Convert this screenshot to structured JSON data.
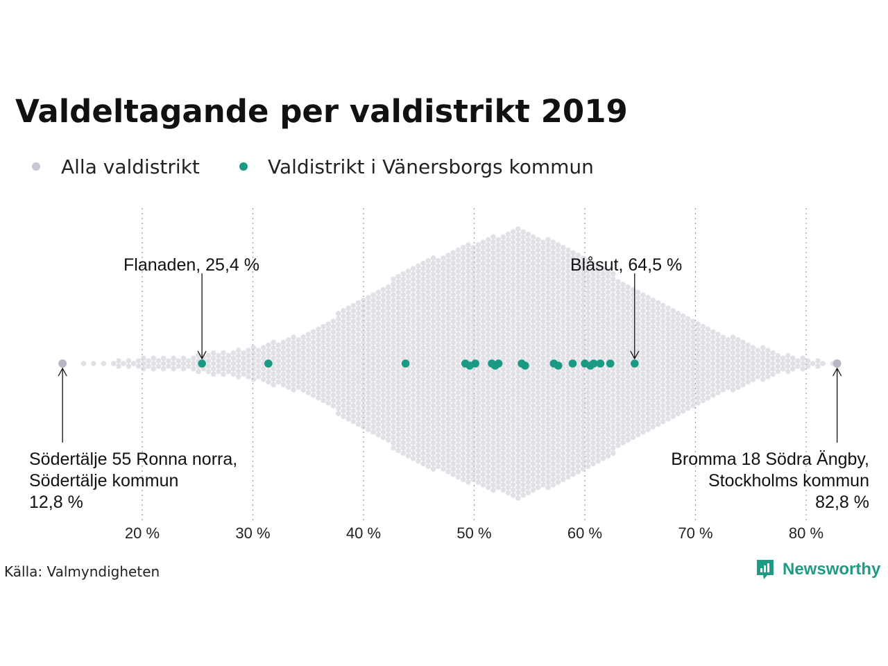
{
  "chart_data": {
    "type": "scatter",
    "subtype": "beeswarm",
    "title": "Valdeltagande per valdistrikt 2019",
    "legend": {
      "placement": "top-left",
      "entries": [
        {
          "label": "Alla valdistrikt",
          "color": "#c9c7d3"
        },
        {
          "label": "Valdistrikt i Vänersborgs kommun",
          "color": "#1a9a85"
        }
      ]
    },
    "x_ticks": [
      "20 %",
      "30 %",
      "40 %",
      "50 %",
      "60 %",
      "70 %",
      "80 %"
    ],
    "x_tick_values": [
      20,
      30,
      40,
      50,
      60,
      70,
      80
    ],
    "xlim": [
      12,
      83
    ],
    "grid": "vertical-dotted",
    "series": [
      {
        "name": "Valdistrikt i Vänersborgs kommun",
        "color": "#1a9a85",
        "values": [
          25.4,
          31.4,
          43.8,
          49.2,
          49.6,
          50.1,
          51.6,
          51.9,
          52.2,
          54.3,
          54.6,
          57.2,
          57.6,
          58.9,
          60.0,
          60.5,
          60.8,
          61.4,
          62.3,
          64.5
        ]
      }
    ],
    "annotations": [
      {
        "lines": [
          "Flanaden, 25,4 %"
        ],
        "value": 25.4
      },
      {
        "lines": [
          "Blåsut, 64,5 %"
        ],
        "value": 64.5
      },
      {
        "lines": [
          "Södertälje 55 Ronna norra,",
          "Södertälje kommun",
          "12,8 %"
        ],
        "value": 12.8
      },
      {
        "lines": [
          "Bromma 18 Södra Ängby,",
          "Stockholms kommun",
          "82,8 %"
        ],
        "value": 82.8
      }
    ]
  },
  "source": "Källa: Valmyndigheten",
  "brand": "Newsworthy",
  "colors": {
    "background_points": "#c9c7d3",
    "highlight": "#1a9a85",
    "brand": "#1f9a83"
  }
}
